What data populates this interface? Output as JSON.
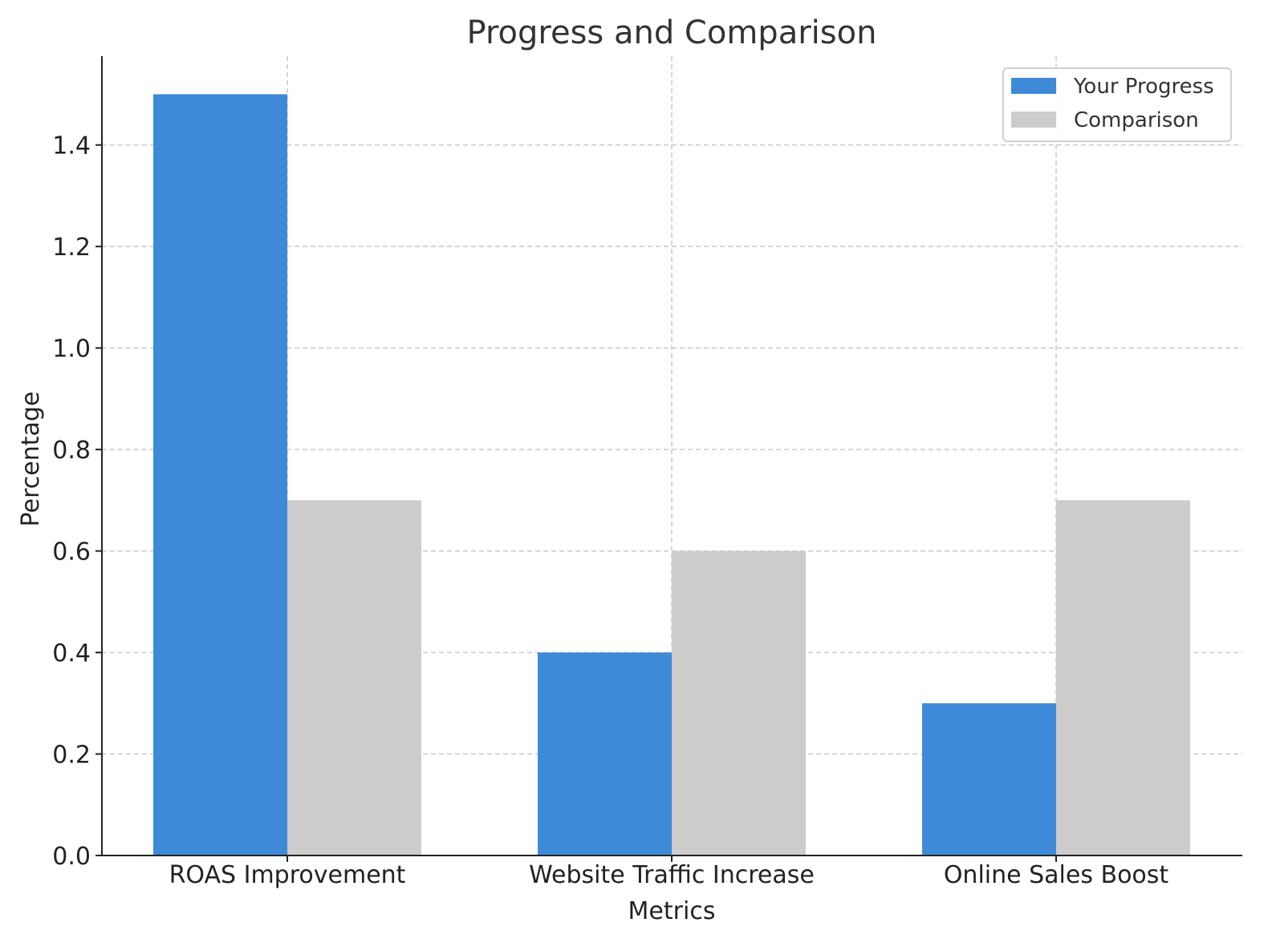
{
  "chart_data": {
    "type": "bar",
    "title": "Progress and Comparison",
    "xlabel": "Metrics",
    "ylabel": "Percentage",
    "categories": [
      "ROAS Improvement",
      "Website Traffic Increase",
      "Online Sales Boost"
    ],
    "series": [
      {
        "name": "Your Progress",
        "values": [
          1.5,
          0.4,
          0.3
        ],
        "color": "#3f8ad8"
      },
      {
        "name": "Comparison",
        "values": [
          0.7,
          0.6,
          0.7
        ],
        "color": "#cccccc"
      }
    ],
    "ylim": [
      0,
      1.575
    ],
    "yticks": [
      "0.0",
      "0.2",
      "0.4",
      "0.6",
      "0.8",
      "1.0",
      "1.2",
      "1.4"
    ],
    "grid": true,
    "legend_position": "top-right"
  }
}
